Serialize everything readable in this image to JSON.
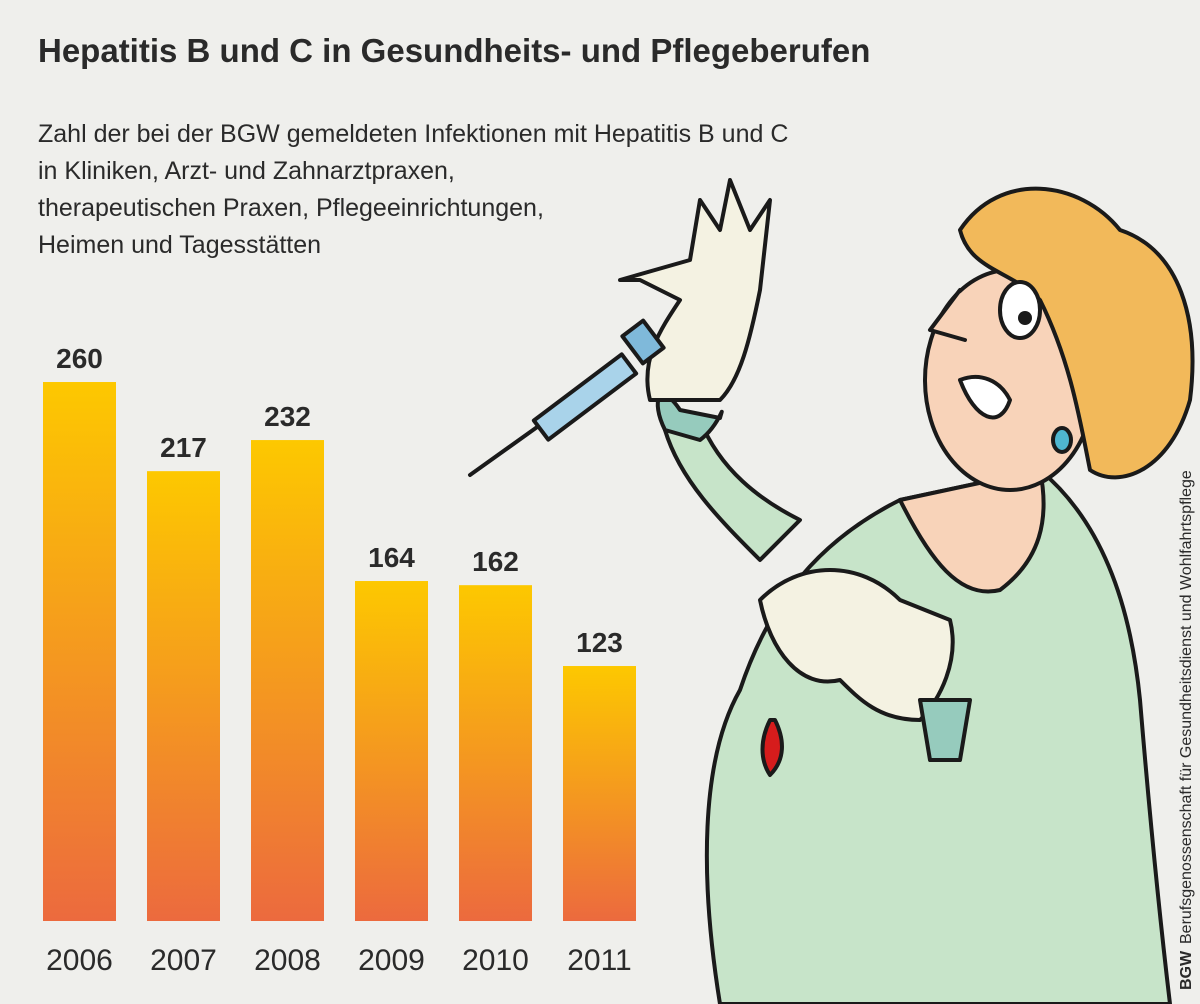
{
  "chart_data": {
    "type": "bar",
    "title": "Hepatitis B und C in Gesundheits- und Pflegeberufen",
    "subtitle": [
      "Zahl der bei der BGW gemeldeten Infektionen mit Hepatitis B und C",
      "in Kliniken, Arzt- und Zahnarztpraxen,",
      "therapeutischen Praxen, Pflegeeinrichtungen,",
      "Heimen und Tagesstätten"
    ],
    "categories": [
      "2006",
      "2007",
      "2008",
      "2009",
      "2010",
      "2011"
    ],
    "values": [
      260,
      217,
      232,
      164,
      162,
      123
    ],
    "color_top": "#fdc800",
    "color_bottom": "#ec6a3e",
    "source_logo": "BGW",
    "source": "Berufsgenossenschaft für Gesundheitsdienst und Wohlfahrtspflege"
  }
}
